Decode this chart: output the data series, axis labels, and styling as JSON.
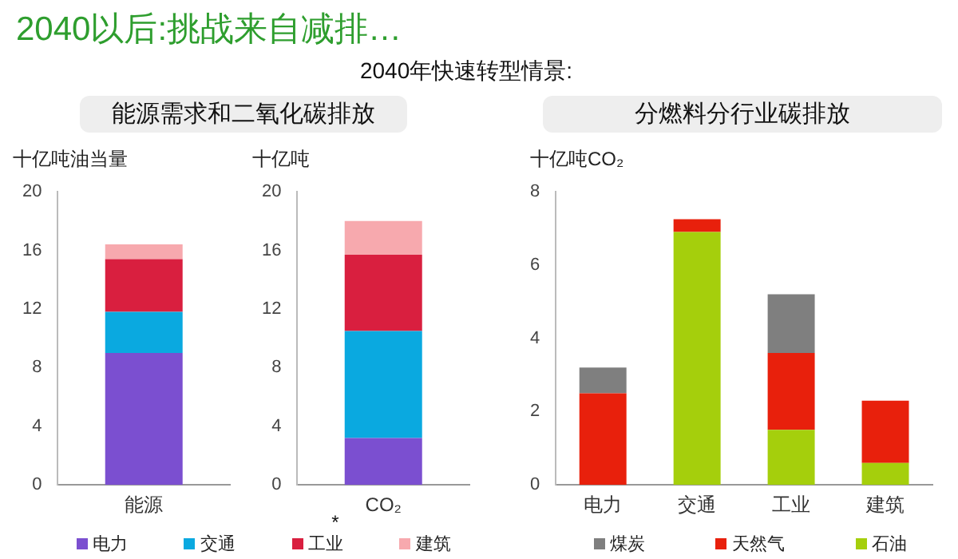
{
  "chart_data": [
    {
      "type": "bar",
      "title": "2040以后:挑战来自减排…",
      "annotations": [
        "能源需求和二氧化碳排放"
      ],
      "ylabel": "十亿吨油当量",
      "categories": [
        "能源"
      ],
      "stacked": true,
      "ylim": [
        0,
        20
      ],
      "yticks": [
        0,
        4,
        8,
        12,
        16,
        20
      ],
      "grid": false,
      "legend": false,
      "series": [
        {
          "color": "#7b4fd0",
          "values": [
            9.0
          ]
        },
        {
          "color": "#0aa9e0",
          "values": [
            2.8
          ]
        },
        {
          "color": "#d91f3f",
          "values": [
            3.6
          ]
        },
        {
          "color": "#f7a9ae",
          "values": [
            1.0
          ]
        }
      ]
    },
    {
      "type": "bar",
      "subtitle": "2040年快速转型情景:",
      "annotations": [
        "*"
      ],
      "ylabel": "十亿吨",
      "categories": [
        "CO₂"
      ],
      "stacked": true,
      "ylim": [
        0,
        20
      ],
      "yticks": [
        0,
        4,
        8,
        12,
        16,
        20
      ],
      "grid": false,
      "legend": "bottom",
      "series": [
        {
          "name": "电力",
          "color": "#7b4fd0",
          "values": [
            3.2
          ]
        },
        {
          "name": "交通",
          "color": "#0aa9e0",
          "values": [
            7.3
          ]
        },
        {
          "name": "工业",
          "color": "#d91f3f",
          "values": [
            5.2
          ]
        },
        {
          "name": "建筑",
          "color": "#f7a9ae",
          "values": [
            2.3
          ]
        }
      ]
    },
    {
      "type": "bar",
      "title": "分燃料分行业碳排放",
      "ylabel": "十亿吨CO₂",
      "categories": [
        "电力",
        "交通",
        "工业",
        "建筑"
      ],
      "stacked": true,
      "ylim": [
        0,
        8
      ],
      "yticks": [
        0,
        2,
        4,
        6,
        8
      ],
      "grid": false,
      "legend": "bottom",
      "series": [
        {
          "name": "石油",
          "color": "#a5cf0c",
          "values": [
            0,
            6.9,
            1.5,
            0.6
          ]
        },
        {
          "name": "天然气",
          "color": "#e8200c",
          "values": [
            2.5,
            0.35,
            2.1,
            1.7
          ]
        },
        {
          "name": "煤炭",
          "color": "#7f7f7f",
          "values": [
            0.7,
            0,
            1.6,
            0
          ]
        }
      ]
    }
  ]
}
